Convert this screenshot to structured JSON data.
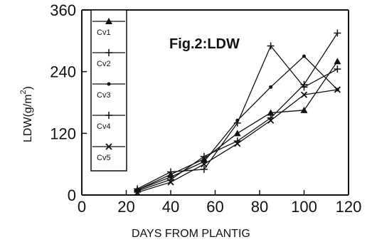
{
  "chart_data": {
    "type": "line",
    "title": "Fig.2:LDW",
    "xlabel": "DAYS FROM PLANTIG",
    "ylabel": "LDW(g/m2)",
    "ylabel_base": "LDW(g/m",
    "ylabel_sup": "2",
    "ylabel_close": ")",
    "xlim": [
      0,
      120
    ],
    "ylim": [
      0,
      360
    ],
    "x_ticks": [
      0,
      20,
      40,
      60,
      80,
      100,
      120
    ],
    "y_ticks": [
      0,
      120,
      240,
      360
    ],
    "legend_position": "top-left",
    "series": [
      {
        "name": "Cv1",
        "marker": "triangle",
        "x": [
          25,
          40,
          55,
          70,
          85,
          100,
          115
        ],
        "y": [
          10,
          40,
          70,
          120,
          160,
          165,
          260
        ]
      },
      {
        "name": "Cv2",
        "marker": "plus",
        "x": [
          25,
          40,
          55,
          70,
          85,
          100,
          115
        ],
        "y": [
          8,
          30,
          75,
          105,
          150,
          215,
          315
        ]
      },
      {
        "name": "Cv3",
        "marker": "dot",
        "x": [
          25,
          40,
          55,
          70,
          85,
          100,
          115
        ],
        "y": [
          10,
          35,
          65,
          145,
          210,
          270,
          205
        ]
      },
      {
        "name": "Cv4",
        "marker": "plus",
        "x": [
          25,
          40,
          55,
          70,
          85,
          100,
          115
        ],
        "y": [
          12,
          45,
          50,
          140,
          290,
          210,
          245
        ]
      },
      {
        "name": "Cv5",
        "marker": "x",
        "x": [
          25,
          40,
          55,
          70,
          85,
          100,
          115
        ],
        "y": [
          5,
          25,
          60,
          100,
          145,
          195,
          205
        ]
      }
    ]
  }
}
